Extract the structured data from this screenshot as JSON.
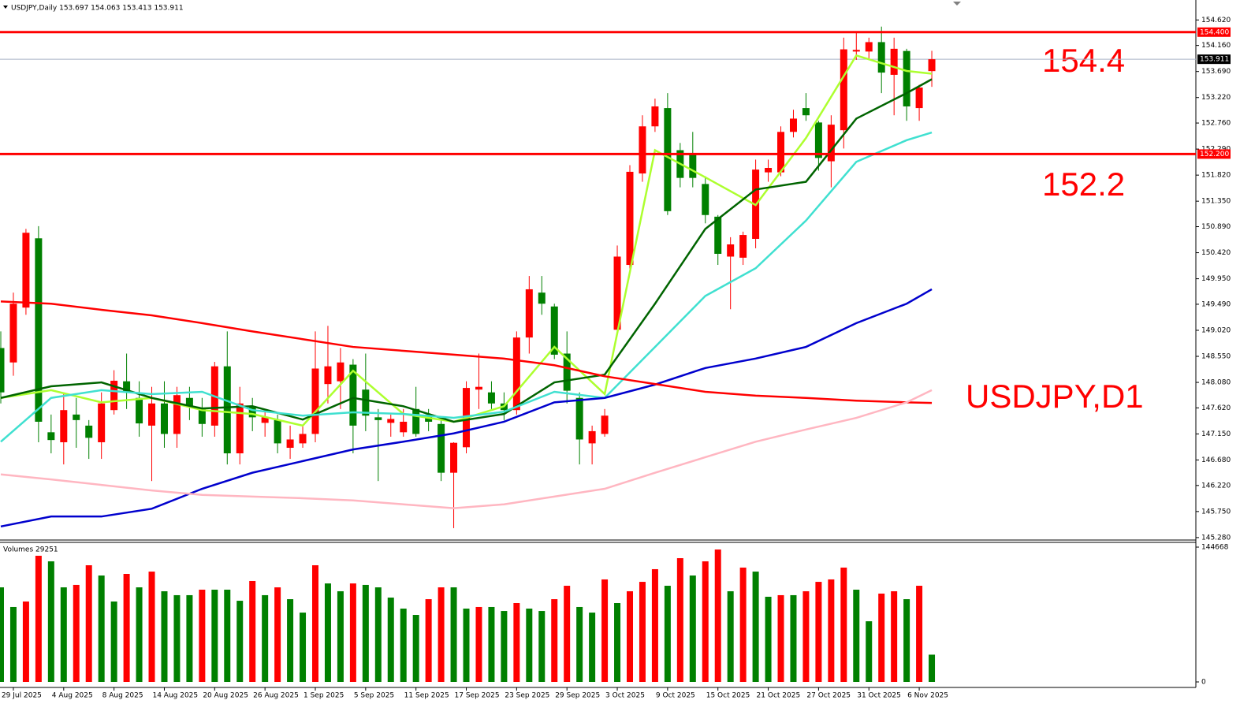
{
  "chart_data": {
    "type": "candlestick",
    "title": "USDJPY,Daily 153.697 154.063 153.413 153.911",
    "categories": [
      null,
      "29 Jul 2025",
      null,
      null,
      null,
      "4 Aug 2025",
      null,
      null,
      null,
      "8 Aug 2025",
      null,
      null,
      null,
      "14 Aug 2025",
      null,
      null,
      null,
      "20 Aug 2025",
      null,
      null,
      null,
      "26 Aug 2025",
      null,
      null,
      null,
      "1 Sep 2025",
      null,
      null,
      null,
      "5 Sep 2025",
      null,
      null,
      null,
      "11 Sep 2025",
      null,
      null,
      null,
      "17 Sep 2025",
      null,
      null,
      null,
      "23 Sep 2025",
      null,
      null,
      null,
      "29 Sep 2025",
      null,
      null,
      null,
      "3 Oct 2025",
      null,
      null,
      null,
      "9 Oct 2025",
      null,
      null,
      null,
      "15 Oct 2025",
      null,
      null,
      null,
      "21 Oct 2025",
      null,
      null,
      null,
      "27 Oct 2025",
      null,
      null,
      null,
      "31 Oct 2025",
      null,
      null,
      null,
      "6 Nov 2025",
      null
    ],
    "open": [
      148.7,
      148.44,
      149.43,
      150.68,
      147.18,
      147.0,
      147.5,
      147.3,
      147.0,
      147.58,
      148.1,
      147.8,
      147.3,
      147.7,
      147.15,
      147.8,
      147.6,
      147.3,
      148.37,
      146.8,
      147.65,
      147.35,
      147.4,
      146.9,
      146.98,
      147.15,
      148.05,
      148.1,
      148.4,
      147.95,
      147.45,
      147.35,
      147.18,
      147.6,
      147.5,
      147.33,
      146.45,
      146.91,
      147.95,
      147.9,
      147.7,
      147.58,
      148.89,
      149.7,
      149.45,
      148.6,
      147.8,
      146.98,
      147.15,
      149.03,
      150.2,
      151.85,
      152.7,
      153.03,
      152.27,
      152.2,
      151.66,
      151.07,
      150.35,
      150.33,
      150.67,
      151.87,
      151.87,
      152.6,
      153.03,
      152.77,
      152.07,
      152.63,
      154.05,
      154.05,
      154.22,
      153.63,
      154.06,
      153.03,
      153.697
    ],
    "high": [
      149.0,
      149.7,
      150.85,
      150.9,
      147.5,
      147.9,
      147.8,
      147.4,
      147.9,
      148.3,
      148.6,
      148.1,
      148.0,
      148.1,
      148.0,
      148.0,
      147.8,
      148.45,
      149.0,
      148.0,
      147.8,
      147.6,
      147.5,
      147.3,
      147.3,
      149.0,
      149.1,
      148.7,
      148.5,
      148.6,
      147.6,
      147.5,
      147.6,
      148.0,
      147.6,
      147.4,
      147.0,
      148.1,
      148.6,
      148.1,
      147.9,
      149.0,
      150.0,
      150.0,
      149.5,
      149.0,
      147.9,
      147.3,
      147.6,
      150.55,
      152.0,
      152.9,
      153.2,
      153.3,
      152.4,
      152.6,
      151.8,
      151.1,
      150.7,
      150.8,
      152.1,
      152.1,
      152.7,
      153.0,
      153.3,
      152.8,
      152.9,
      154.3,
      154.4,
      154.3,
      154.5,
      154.3,
      154.1,
      153.45,
      154.063
    ],
    "low": [
      147.7,
      148.2,
      149.3,
      147.0,
      146.8,
      146.6,
      146.9,
      146.7,
      146.7,
      147.5,
      147.6,
      147.1,
      146.3,
      146.9,
      146.9,
      147.4,
      147.1,
      147.1,
      146.6,
      146.6,
      147.2,
      147.1,
      146.8,
      146.7,
      146.9,
      147.0,
      147.7,
      147.6,
      146.8,
      147.2,
      146.3,
      147.1,
      147.1,
      147.1,
      147.2,
      146.3,
      145.45,
      146.8,
      147.6,
      147.6,
      147.4,
      147.5,
      148.6,
      149.3,
      148.5,
      147.7,
      146.6,
      146.6,
      147.1,
      148.95,
      150.1,
      151.7,
      152.6,
      151.1,
      151.6,
      151.6,
      150.95,
      150.2,
      149.4,
      150.2,
      150.5,
      151.7,
      151.8,
      152.5,
      152.8,
      151.9,
      151.6,
      152.3,
      153.9,
      153.9,
      153.3,
      152.9,
      152.8,
      152.8,
      153.413
    ],
    "close": [
      147.9,
      149.5,
      150.78,
      147.37,
      147.04,
      147.58,
      147.4,
      147.08,
      147.7,
      148.11,
      147.9,
      147.34,
      147.7,
      147.15,
      147.85,
      147.65,
      147.33,
      148.37,
      146.8,
      147.7,
      147.45,
      147.45,
      146.98,
      147.05,
      147.15,
      148.33,
      148.37,
      148.44,
      147.3,
      147.48,
      147.4,
      147.42,
      147.37,
      147.15,
      147.37,
      146.45,
      146.99,
      147.98,
      148.0,
      147.7,
      147.58,
      148.89,
      149.76,
      149.5,
      148.58,
      147.93,
      147.05,
      147.2,
      147.48,
      150.35,
      151.88,
      152.7,
      153.06,
      151.17,
      151.77,
      151.77,
      151.1,
      150.4,
      150.57,
      150.74,
      151.92,
      151.95,
      152.6,
      152.84,
      152.9,
      152.13,
      152.73,
      154.09,
      154.08,
      154.22,
      153.67,
      154.1,
      153.06,
      153.4,
      153.911
    ],
    "up_color": "#ff0000",
    "down_color": "#008000",
    "ylim": [
      145.25,
      154.98
    ],
    "yticks": [
      {
        "value": 154.62,
        "label": "154.620"
      },
      {
        "value": 154.16,
        "label": "154.160"
      },
      {
        "value": 153.69,
        "label": "153.690"
      },
      {
        "value": 153.22,
        "label": "153.220"
      },
      {
        "value": 152.76,
        "label": "152.760"
      },
      {
        "value": 152.29,
        "label": "152.290"
      },
      {
        "value": 151.82,
        "label": "151.820"
      },
      {
        "value": 151.35,
        "label": "151.350"
      },
      {
        "value": 150.89,
        "label": "150.890"
      },
      {
        "value": 150.42,
        "label": "150.420"
      },
      {
        "value": 149.95,
        "label": "149.950"
      },
      {
        "value": 149.49,
        "label": "149.490"
      },
      {
        "value": 149.02,
        "label": "149.020"
      },
      {
        "value": 148.55,
        "label": "148.550"
      },
      {
        "value": 148.08,
        "label": "148.080"
      },
      {
        "value": 147.62,
        "label": "147.620"
      },
      {
        "value": 147.15,
        "label": "147.150"
      },
      {
        "value": 146.68,
        "label": "146.680"
      },
      {
        "value": 146.22,
        "label": "146.220"
      },
      {
        "value": 145.75,
        "label": "145.750"
      },
      {
        "value": 145.28,
        "label": "145.280"
      }
    ],
    "lines": [
      {
        "color": "#adff2f",
        "x": [
          0,
          4,
          8,
          12,
          16,
          20,
          24,
          28,
          32,
          36,
          40,
          44,
          48,
          52,
          56,
          60,
          64,
          68,
          72,
          74
        ],
        "values": [
          147.8,
          147.94,
          147.72,
          147.8,
          147.58,
          147.51,
          147.3,
          148.29,
          147.51,
          147.37,
          147.65,
          148.72,
          147.87,
          152.27,
          151.78,
          151.28,
          152.49,
          153.98,
          153.7,
          153.65
        ]
      },
      {
        "color": "#006400",
        "x": [
          0,
          4,
          8,
          12,
          16,
          20,
          24,
          28,
          32,
          36,
          40,
          44,
          48,
          52,
          56,
          60,
          64,
          68,
          72,
          74
        ],
        "values": [
          147.8,
          148.01,
          148.08,
          147.8,
          147.61,
          147.65,
          147.41,
          147.8,
          147.65,
          147.37,
          147.51,
          148.08,
          148.22,
          149.5,
          150.85,
          151.56,
          151.7,
          152.84,
          153.3,
          153.55
        ]
      },
      {
        "color": "#40e0d0",
        "x": [
          0,
          4,
          8,
          12,
          16,
          20,
          24,
          28,
          32,
          36,
          40,
          44,
          48,
          52,
          56,
          60,
          64,
          68,
          72,
          74
        ],
        "values": [
          147.01,
          147.8,
          147.94,
          147.87,
          147.91,
          147.58,
          147.48,
          147.54,
          147.51,
          147.44,
          147.55,
          147.91,
          147.8,
          148.72,
          149.64,
          150.14,
          151.0,
          152.06,
          152.45,
          152.59
        ]
      },
      {
        "color": "#0000cd",
        "x": [
          0,
          4,
          8,
          12,
          16,
          20,
          24,
          28,
          32,
          36,
          40,
          44,
          48,
          52,
          56,
          60,
          64,
          68,
          72,
          74
        ],
        "values": [
          145.48,
          145.66,
          145.66,
          145.8,
          146.16,
          146.45,
          146.66,
          146.87,
          147.01,
          147.16,
          147.37,
          147.72,
          147.8,
          148.04,
          148.34,
          148.51,
          148.72,
          149.15,
          149.5,
          149.76
        ]
      },
      {
        "color": "#ff0000",
        "x": [
          0,
          4,
          8,
          12,
          16,
          20,
          24,
          28,
          32,
          36,
          40,
          44,
          48,
          52,
          56,
          60,
          64,
          68,
          72,
          74
        ],
        "values": [
          149.54,
          149.5,
          149.39,
          149.29,
          149.15,
          149.0,
          148.86,
          148.72,
          148.65,
          148.58,
          148.51,
          148.39,
          148.19,
          148.05,
          147.91,
          147.84,
          147.8,
          147.75,
          147.72,
          147.71
        ]
      },
      {
        "color": "#ffb6c1",
        "x": [
          0,
          4,
          8,
          12,
          16,
          20,
          24,
          28,
          32,
          36,
          40,
          44,
          48,
          52,
          56,
          60,
          64,
          68,
          72,
          74
        ],
        "values": [
          146.42,
          146.33,
          146.23,
          146.13,
          146.05,
          146.02,
          145.99,
          145.95,
          145.88,
          145.81,
          145.88,
          146.02,
          146.16,
          146.45,
          146.73,
          147.01,
          147.23,
          147.44,
          147.72,
          147.94
        ]
      }
    ],
    "hlines": [
      {
        "value": 154.4,
        "label": "154.400",
        "color": "#ff0000"
      },
      {
        "value": 152.2,
        "label": "152.200",
        "color": "#ff0000"
      }
    ],
    "current": {
      "value": 153.911,
      "label": "153.911"
    },
    "annotations": [
      "154.4",
      "152.2",
      "USDJPY,D1"
    ],
    "volume": {
      "title": "Volumes 29251",
      "values": [
        101500,
        80400,
        86300,
        135400,
        129400,
        101500,
        104100,
        125200,
        114200,
        86300,
        115900,
        101500,
        118400,
        97300,
        93100,
        93100,
        99000,
        99000,
        99000,
        87100,
        108300,
        93100,
        101500,
        88800,
        74400,
        125200,
        105700,
        97300,
        105700,
        104100,
        101500,
        90500,
        78700,
        71900,
        88800,
        101500,
        101500,
        78700,
        80400,
        80400,
        76100,
        84600,
        78700,
        76100,
        88800,
        103200,
        80400,
        74400,
        110000,
        84600,
        97300,
        107400,
        121000,
        103200,
        132800,
        114200,
        129400,
        142100,
        97300,
        122700,
        118400,
        91400,
        93100,
        93100,
        97300,
        107400,
        110000,
        122700,
        99000,
        65100,
        94800,
        97300,
        88800,
        103200,
        29251
      ],
      "ylim": [
        0,
        144668
      ],
      "yticks": [
        0,
        144668
      ],
      "up_color": "#ff0000",
      "down_color": "#008000"
    }
  }
}
